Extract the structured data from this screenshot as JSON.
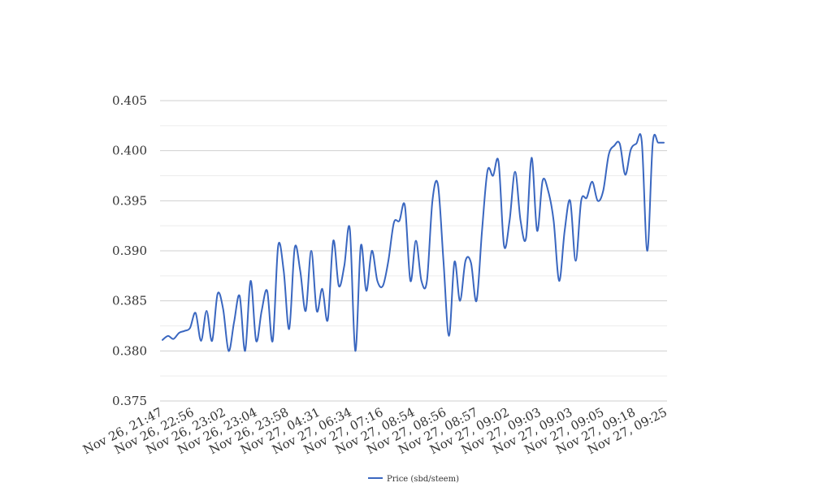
{
  "chart_data": {
    "type": "line",
    "title": "",
    "xlabel": "",
    "ylabel": "",
    "ylim": [
      0.375,
      0.405
    ],
    "y_ticks": [
      "0.375",
      "0.380",
      "0.385",
      "0.390",
      "0.395",
      "0.400",
      "0.405"
    ],
    "minor_gridlines": true,
    "legend_position": "bottom",
    "line_color": "#3a67c0",
    "x_tick_labels": [
      "Nov 26, 21:47",
      "Nov 26, 22:56",
      "Nov 26, 23:02",
      "Nov 26, 23:04",
      "Nov 26, 23:58",
      "Nov 27, 04:31",
      "Nov 27, 06:34",
      "Nov 27, 07:16",
      "Nov 27, 08:54",
      "Nov 27, 08:56",
      "Nov 27, 08:57",
      "Nov 27, 09:02",
      "Nov 27, 09:03",
      "Nov 27, 09:03",
      "Nov 27, 09:05",
      "Nov 27, 09:18",
      "Nov 27, 09:25"
    ],
    "series": [
      {
        "name": "Price (sbd/steem)",
        "values": [
          0.3811,
          0.3815,
          0.3812,
          0.3818,
          0.382,
          0.3823,
          0.3838,
          0.381,
          0.384,
          0.381,
          0.3857,
          0.3842,
          0.38,
          0.3829,
          0.3855,
          0.38,
          0.387,
          0.381,
          0.384,
          0.386,
          0.381,
          0.3905,
          0.388,
          0.3822,
          0.3903,
          0.388,
          0.384,
          0.39,
          0.384,
          0.3862,
          0.3831,
          0.391,
          0.3865,
          0.3885,
          0.3922,
          0.38,
          0.3905,
          0.386,
          0.39,
          0.387,
          0.3865,
          0.389,
          0.3928,
          0.393,
          0.3945,
          0.387,
          0.391,
          0.387,
          0.387,
          0.395,
          0.3966,
          0.389,
          0.3815,
          0.3889,
          0.385,
          0.389,
          0.3888,
          0.385,
          0.392,
          0.398,
          0.3975,
          0.3989,
          0.3905,
          0.393,
          0.3979,
          0.393,
          0.3913,
          0.3993,
          0.392,
          0.397,
          0.396,
          0.393,
          0.387,
          0.392,
          0.395,
          0.389,
          0.395,
          0.3953,
          0.3969,
          0.395,
          0.396,
          0.3996,
          0.4005,
          0.4007,
          0.3976,
          0.4001,
          0.4007,
          0.4009,
          0.39,
          0.4008,
          0.4008,
          0.4008
        ]
      }
    ]
  }
}
